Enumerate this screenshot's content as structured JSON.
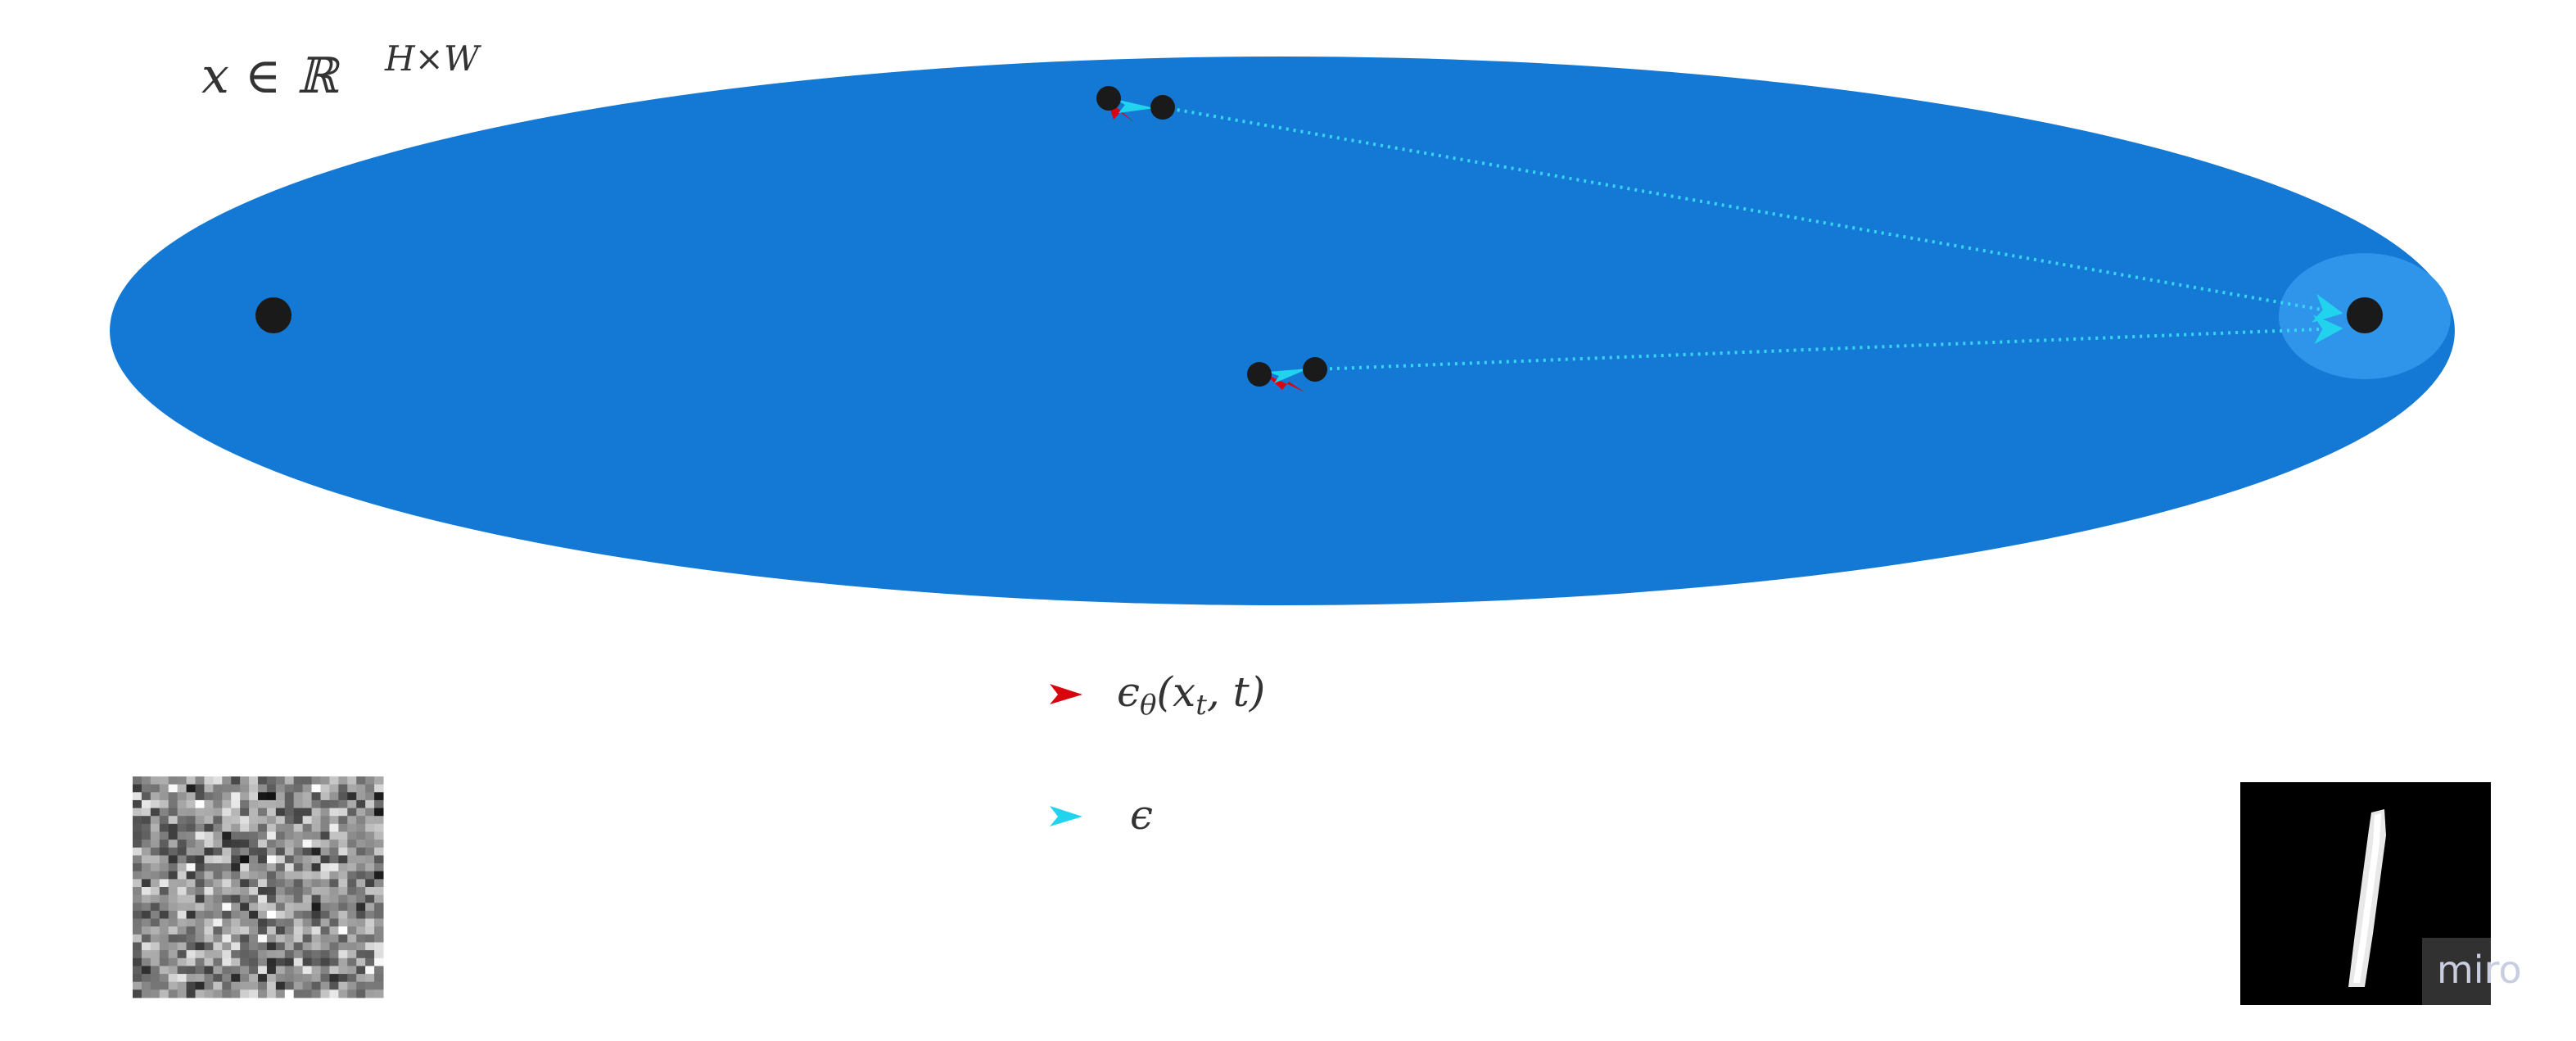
{
  "space_label": {
    "base": "x ∈ ℝ",
    "superscript": "H×W"
  },
  "legend": {
    "predicted_noise": {
      "label_main": "ϵ",
      "label_sub": "θ",
      "label_rest": "(x",
      "label_sub2": "t",
      "label_end": ", t)",
      "color": "#d8050f"
    },
    "true_noise": {
      "label": "ϵ",
      "color": "#22d3ee"
    }
  },
  "colors": {
    "manifold": "#1479d4",
    "data_region": "#2f95ea",
    "point": "#1a1a1a",
    "trajectory": "#38d6f5"
  },
  "icons": {
    "noise_image": "random-noise-thumbnail",
    "digit_image": "mnist-digit-one-thumbnail"
  },
  "watermark": "miro"
}
